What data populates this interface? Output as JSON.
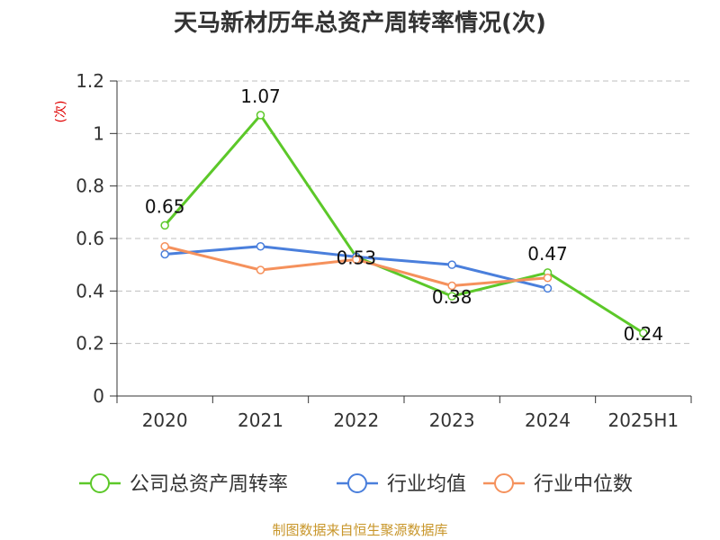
{
  "chart_data": {
    "type": "line",
    "title": "天马新材历年总资产周转率情况(次)",
    "ylabel": "(次)",
    "xlabel": "",
    "categories": [
      "2020",
      "2021",
      "2022",
      "2023",
      "2024",
      "2025H1"
    ],
    "ylim": [
      0,
      1.2
    ],
    "yticks": [
      0,
      0.2,
      0.4,
      0.6,
      0.8,
      1,
      1.2
    ],
    "ytick_labels": [
      "0",
      "0.2",
      "0.4",
      "0.6",
      "0.8",
      "1",
      "1.2"
    ],
    "grid": "horizontal dashed",
    "legend_position": "bottom",
    "series": [
      {
        "name": "公司总资产周转率",
        "color": "#5cc829",
        "values": [
          0.65,
          1.07,
          0.53,
          0.38,
          0.47,
          0.24
        ],
        "data_labels": [
          "0.65",
          "1.07",
          "0.53",
          "0.38",
          "0.47",
          "0.24"
        ]
      },
      {
        "name": "行业均值",
        "color": "#4a7fdc",
        "values": [
          0.54,
          0.57,
          0.53,
          0.5,
          0.41,
          null
        ]
      },
      {
        "name": "行业中位数",
        "color": "#f5915c",
        "values": [
          0.57,
          0.48,
          0.52,
          0.42,
          0.45,
          null
        ]
      }
    ],
    "source": "制图数据来自恒生聚源数据库"
  }
}
